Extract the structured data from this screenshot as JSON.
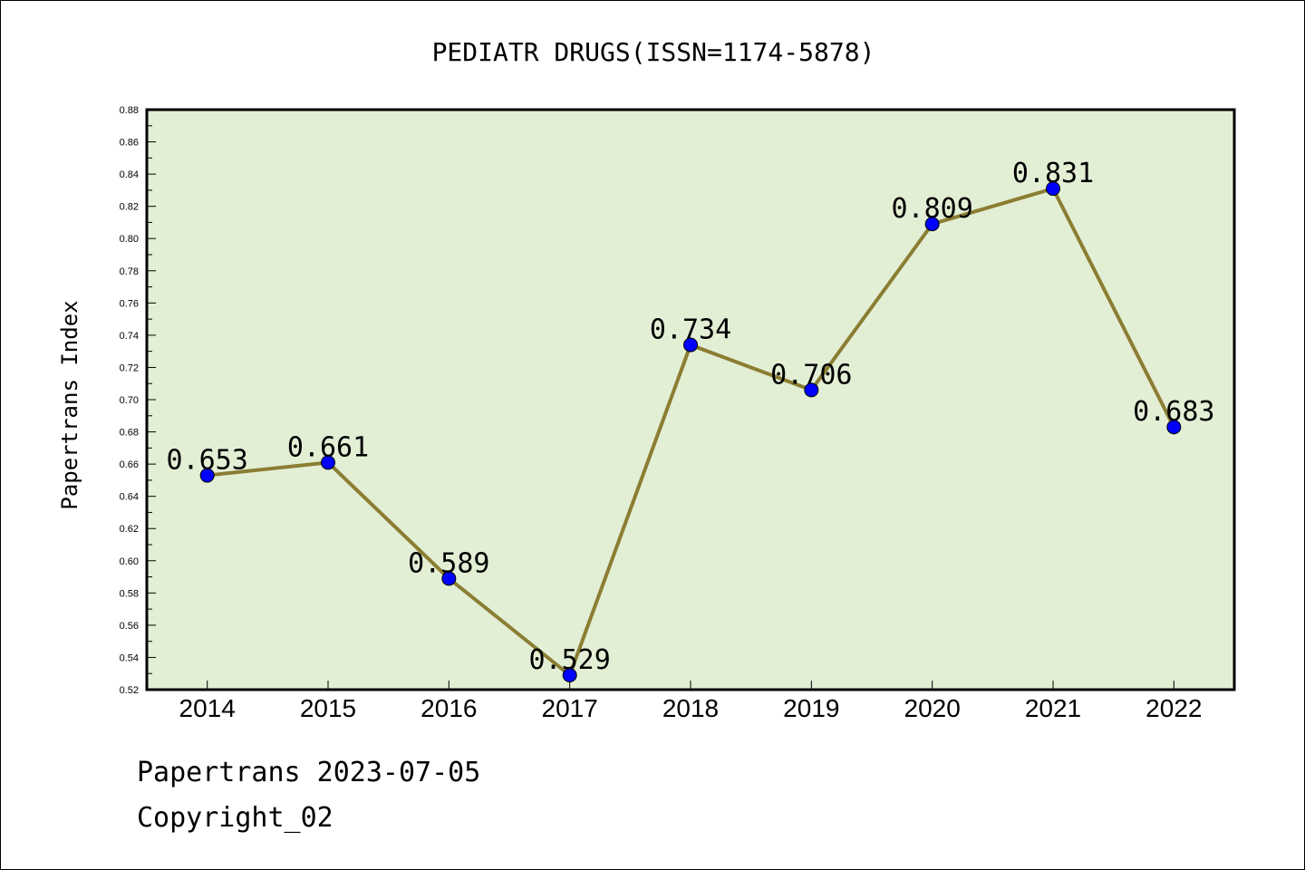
{
  "chart_data": {
    "type": "line",
    "title": "PEDIATR DRUGS(ISSN=1174-5878)",
    "xlabel": "",
    "ylabel": "Papertrans Index",
    "categories": [
      "2014",
      "2015",
      "2016",
      "2017",
      "2018",
      "2019",
      "2020",
      "2021",
      "2022"
    ],
    "values": [
      0.653,
      0.661,
      0.589,
      0.529,
      0.734,
      0.706,
      0.809,
      0.831,
      0.683
    ],
    "data_labels": [
      "0.653",
      "0.661",
      "0.589",
      "0.529",
      "0.734",
      "0.706",
      "0.809",
      "0.831",
      "0.683"
    ],
    "ylim": [
      0.52,
      0.88
    ],
    "yticks": [
      "0.52",
      "0.54",
      "0.56",
      "0.58",
      "0.60",
      "0.62",
      "0.64",
      "0.66",
      "0.68",
      "0.70",
      "0.72",
      "0.74",
      "0.76",
      "0.78",
      "0.80",
      "0.82",
      "0.84",
      "0.86",
      "0.88"
    ],
    "grid": false,
    "legend": "none",
    "colors": {
      "plot_background": "#e2efd5",
      "line": "#8b7d32",
      "marker": "#0000ff",
      "frame": "#000000"
    }
  },
  "footer": {
    "line1": "Papertrans 2023-07-05",
    "line2": "Copyright_02"
  }
}
